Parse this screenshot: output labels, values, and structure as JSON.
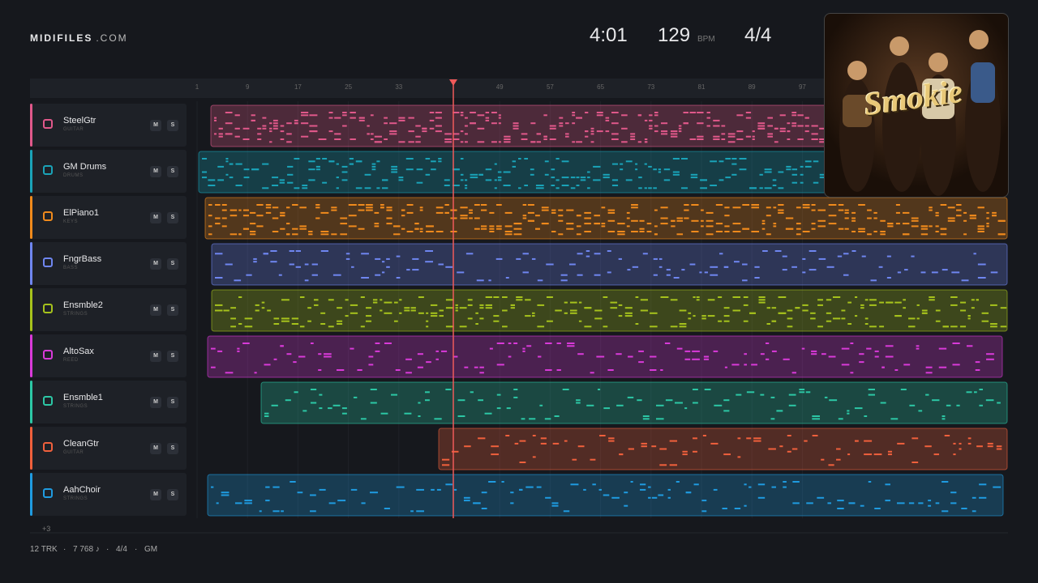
{
  "header": {
    "brand": "MIDIFILES",
    "brand_suffix": ".COM",
    "time": "4:01",
    "tempo": "129",
    "tempo_unit": "BPM",
    "meter": "4/4"
  },
  "album": {
    "logo": "Smokie"
  },
  "ruler": {
    "bars": [
      1,
      9,
      17,
      25,
      33,
      49,
      57,
      65,
      73,
      81,
      89,
      97
    ]
  },
  "tracks": [
    {
      "name": "SteelGtr",
      "kind": "GUITAR",
      "color": "#e0588a",
      "mute": "M",
      "solo": "S"
    },
    {
      "name": "GM Drums",
      "kind": "DRUMS",
      "color": "#1aa3b8",
      "mute": "M",
      "solo": "S"
    },
    {
      "name": "ElPiano1",
      "kind": "KEYS",
      "color": "#f08a1c",
      "mute": "M",
      "solo": "S"
    },
    {
      "name": "FngrBass",
      "kind": "BASS",
      "color": "#6f86f0",
      "mute": "M",
      "solo": "S"
    },
    {
      "name": "Ensmble2",
      "kind": "STRINGS",
      "color": "#a6c21c",
      "mute": "M",
      "solo": "S"
    },
    {
      "name": "AltoSax",
      "kind": "REED",
      "color": "#d93ad9",
      "mute": "M",
      "solo": "S"
    },
    {
      "name": "Ensmble1",
      "kind": "STRINGS",
      "color": "#2cc7a5",
      "mute": "M",
      "solo": "S"
    },
    {
      "name": "CleanGtr",
      "kind": "GUITAR",
      "color": "#f0603c",
      "mute": "M",
      "solo": "S"
    },
    {
      "name": "AahChoir",
      "kind": "STRINGS",
      "color": "#1f9be0",
      "mute": "M",
      "solo": "S"
    }
  ],
  "more_tracks": "+3",
  "footer": {
    "tracks": "12 TRK",
    "notes": "7 768 ♪",
    "meter": "4/4",
    "standard": "GM",
    "separator": "·"
  }
}
